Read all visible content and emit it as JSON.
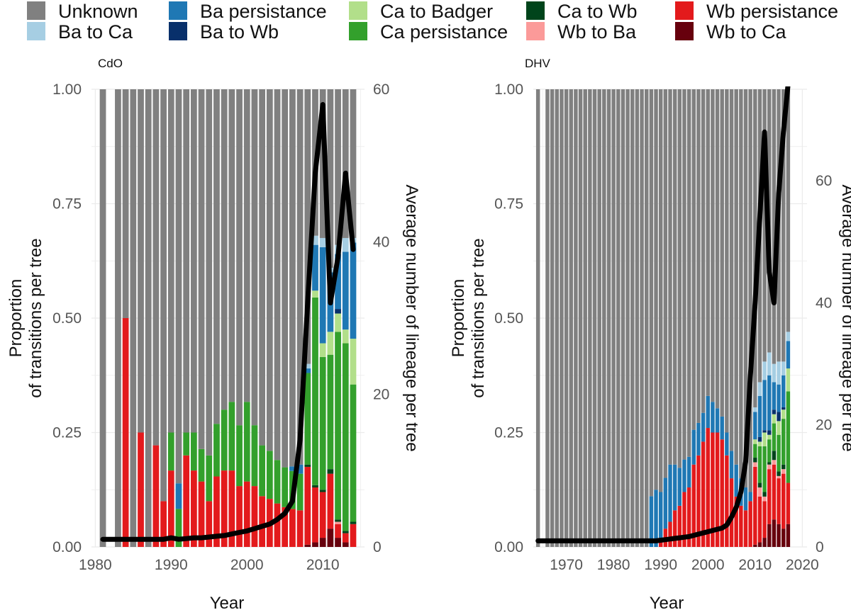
{
  "legend": {
    "entries": [
      {
        "key": "unknown",
        "label": "Unknown",
        "color": "#808080"
      },
      {
        "key": "ba_ca",
        "label": "Ba to Ca",
        "color": "#a6cee3"
      },
      {
        "key": "ba_pers",
        "label": "Ba persistance",
        "color": "#1f78b4"
      },
      {
        "key": "ba_wb",
        "label": "Ba to Wb",
        "color": "#08306b"
      },
      {
        "key": "ca_badger",
        "label": "Ca to Badger",
        "color": "#b2df8a"
      },
      {
        "key": "ca_pers",
        "label": "Ca persistance",
        "color": "#33a02c"
      },
      {
        "key": "ca_wb",
        "label": "Ca to Wb",
        "color": "#00441b"
      },
      {
        "key": "wb_ba",
        "label": "Wb to Ba",
        "color": "#fb9a99"
      },
      {
        "key": "wb_pers",
        "label": "Wb persistance",
        "color": "#e31a1c"
      },
      {
        "key": "wb_ca",
        "label": "Wb to Ca",
        "color": "#67000d"
      }
    ]
  },
  "chart_data": [
    {
      "type": "bar",
      "panel": "CdO",
      "title": "CdO",
      "xlabel": "Year",
      "ylabel_left": [
        "Proportion",
        "of transitions per tree"
      ],
      "ylabel_right": "Average number of lineage per tree",
      "xlim": [
        1979.5,
        2015.5
      ],
      "xticks": [
        1980,
        1990,
        2000,
        2010
      ],
      "ylim_left": [
        0,
        1
      ],
      "yticks_left": [
        0,
        0.25,
        0.5,
        0.75,
        1
      ],
      "ytick_labels_left": [
        "0.00",
        "0.25",
        "0.50",
        "0.75",
        "1.00"
      ],
      "ylim_right": [
        0,
        60
      ],
      "yticks_right": [
        0,
        20,
        40,
        60
      ],
      "stack_order": [
        "wb_ca",
        "wb_pers",
        "wb_ba",
        "ca_wb",
        "ca_pers",
        "ca_badger",
        "ba_wb",
        "ba_pers",
        "ba_ca"
      ],
      "years": [
        1981,
        1983,
        1984,
        1985,
        1986,
        1987,
        1988,
        1989,
        1990,
        1991,
        1992,
        1993,
        1994,
        1995,
        1996,
        1997,
        1998,
        1999,
        2000,
        2001,
        2002,
        2003,
        2004,
        2005,
        2006,
        2007,
        2008,
        2009,
        2010,
        2011,
        2012,
        2013,
        2014
      ],
      "bars": {
        "wb_ca": [
          0,
          0,
          0,
          0,
          0,
          0,
          0,
          0,
          0,
          0,
          0,
          0,
          0,
          0,
          0,
          0,
          0,
          0,
          0,
          0,
          0,
          0,
          0,
          0,
          0,
          0,
          0.005,
          0.01,
          0.02,
          0.04,
          0.02,
          0.01,
          0
        ],
        "wb_pers": [
          0,
          0,
          0.5,
          0,
          0.25,
          0,
          0.222,
          0.1,
          0.167,
          0,
          0.2,
          0.167,
          0.143,
          0.1,
          0.154,
          0.167,
          0.167,
          0.133,
          0.143,
          0.133,
          0.111,
          0.105,
          0.095,
          0.087,
          0.083,
          0.08,
          0.17,
          0.12,
          0.1,
          0.12,
          0.03,
          0.02,
          0.05
        ],
        "wb_ba": [
          0,
          0,
          0,
          0,
          0,
          0,
          0,
          0,
          0,
          0,
          0,
          0,
          0,
          0,
          0,
          0,
          0,
          0,
          0,
          0,
          0,
          0,
          0,
          0,
          0,
          0,
          0,
          0,
          0,
          0,
          0.005,
          0,
          0
        ],
        "ca_wb": [
          0,
          0,
          0,
          0,
          0,
          0,
          0,
          0,
          0,
          0,
          0,
          0,
          0,
          0,
          0,
          0,
          0,
          0,
          0,
          0,
          0,
          0,
          0,
          0,
          0,
          0,
          0.005,
          0.005,
          0.005,
          0.01,
          0.005,
          0.005,
          0.005
        ],
        "ca_pers": [
          0,
          0,
          0,
          0,
          0,
          0,
          0,
          0,
          0.083,
          0.083,
          0.05,
          0.083,
          0.071,
          0.1,
          0.115,
          0.133,
          0.15,
          0.133,
          0.174,
          0.133,
          0.111,
          0.105,
          0.095,
          0.087,
          0.083,
          0.08,
          0.2,
          0.41,
          0.29,
          0.25,
          0.41,
          0.41,
          0.3
        ],
        "ca_badger": [
          0,
          0,
          0,
          0,
          0,
          0,
          0,
          0,
          0,
          0,
          0,
          0,
          0,
          0,
          0,
          0,
          0,
          0,
          0,
          0,
          0,
          0,
          0,
          0,
          0,
          0,
          0,
          0.015,
          0.03,
          0.05,
          0.04,
          0.03,
          0.1
        ],
        "ba_wb": [
          0,
          0,
          0,
          0,
          0,
          0,
          0,
          0,
          0,
          0,
          0,
          0,
          0,
          0,
          0,
          0,
          0,
          0,
          0,
          0,
          0,
          0,
          0,
          0,
          0,
          0,
          0,
          0,
          0,
          0,
          0.01,
          0,
          0
        ],
        "ba_pers": [
          0,
          0,
          0,
          0,
          0,
          0,
          0,
          0,
          0,
          0.056,
          0,
          0,
          0,
          0,
          0,
          0,
          0,
          0,
          0,
          0,
          0,
          0,
          0,
          0,
          0.01,
          0.02,
          0.01,
          0.1,
          0.21,
          0.13,
          0.12,
          0.17,
          0.21
        ],
        "ba_ca": [
          0,
          0,
          0,
          0,
          0,
          0,
          0,
          0,
          0,
          0,
          0,
          0,
          0,
          0,
          0,
          0,
          0,
          0,
          0,
          0,
          0,
          0,
          0,
          0,
          0,
          0,
          0.01,
          0.02,
          0.02,
          0.01,
          0.02,
          0.03,
          0.01
        ]
      },
      "line": {
        "series": "Average number of lineage per tree",
        "x": [
          1981,
          1983,
          1984,
          1985,
          1986,
          1987,
          1988,
          1989,
          1990,
          1991,
          1992,
          1993,
          1994,
          1995,
          1996,
          1997,
          1998,
          1999,
          2000,
          2001,
          2002,
          2003,
          2004,
          2005,
          2006,
          2007,
          2008,
          2009,
          2010,
          2011,
          2012,
          2013,
          2014
        ],
        "y": [
          1,
          1,
          1,
          1,
          1,
          1,
          1,
          1,
          1.2,
          1,
          1.1,
          1.2,
          1.2,
          1.3,
          1.4,
          1.5,
          1.7,
          1.9,
          2.1,
          2.4,
          2.7,
          3,
          3.6,
          4.4,
          6,
          14,
          32,
          49,
          58,
          32,
          38,
          49,
          39
        ]
      }
    },
    {
      "type": "bar",
      "panel": "DHV",
      "title": "DHV",
      "xlabel": "Year",
      "ylabel_left": [
        "Proportion",
        "of transitions per tree"
      ],
      "ylabel_right": "Average number of lineage per tree",
      "xlim": [
        1963,
        2021
      ],
      "xticks": [
        1970,
        1980,
        1990,
        2000,
        2010,
        2020
      ],
      "ylim_left": [
        0,
        1
      ],
      "yticks_left": [
        0,
        0.25,
        0.5,
        0.75,
        1
      ],
      "ytick_labels_left": [
        "0.00",
        "0.25",
        "0.50",
        "0.75",
        "1.00"
      ],
      "ylim_right": [
        0,
        75
      ],
      "yticks_right": [
        0,
        20,
        40,
        60
      ],
      "stack_order": [
        "wb_ca",
        "wb_pers",
        "wb_ba",
        "ca_wb",
        "ca_pers",
        "ca_badger",
        "ba_wb",
        "ba_pers",
        "ba_ca"
      ],
      "years": [
        1964,
        1966,
        1967,
        1968,
        1969,
        1970,
        1971,
        1972,
        1973,
        1974,
        1975,
        1976,
        1977,
        1978,
        1979,
        1980,
        1981,
        1982,
        1983,
        1984,
        1985,
        1986,
        1987,
        1988,
        1989,
        1990,
        1991,
        1992,
        1993,
        1994,
        1995,
        1996,
        1997,
        1998,
        1999,
        2000,
        2001,
        2002,
        2003,
        2004,
        2005,
        2006,
        2007,
        2008,
        2009,
        2010,
        2011,
        2012,
        2013,
        2014,
        2015,
        2016,
        2017
      ],
      "bars": {
        "wb_ca": [
          0,
          0,
          0,
          0,
          0,
          0,
          0,
          0,
          0,
          0,
          0,
          0,
          0,
          0,
          0,
          0,
          0,
          0,
          0,
          0,
          0,
          0,
          0,
          0,
          0,
          0,
          0,
          0,
          0,
          0,
          0,
          0,
          0,
          0,
          0,
          0,
          0,
          0,
          0,
          0,
          0,
          0,
          0,
          0,
          0,
          0.005,
          0.01,
          0.02,
          0.05,
          0.06,
          0.05,
          0.04,
          0.05
        ],
        "wb_pers": [
          0,
          0,
          0,
          0,
          0,
          0,
          0,
          0,
          0,
          0,
          0,
          0,
          0,
          0,
          0,
          0,
          0,
          0,
          0,
          0,
          0,
          0,
          0,
          0,
          0,
          0.02,
          0.04,
          0.055,
          0.08,
          0.09,
          0.12,
          0.13,
          0.18,
          0.2,
          0.23,
          0.26,
          0.25,
          0.25,
          0.235,
          0.2,
          0.15,
          0.11,
          0.09,
          0.08,
          0.1,
          0.17,
          0.1,
          0.08,
          0.12,
          0.12,
          0.1,
          0.12,
          0.09
        ],
        "wb_ba": [
          0,
          0,
          0,
          0,
          0,
          0,
          0,
          0,
          0,
          0,
          0,
          0,
          0,
          0,
          0,
          0,
          0,
          0,
          0,
          0,
          0,
          0,
          0,
          0,
          0,
          0,
          0,
          0,
          0,
          0,
          0,
          0,
          0,
          0,
          0,
          0,
          0,
          0,
          0,
          0,
          0,
          0,
          0,
          0,
          0,
          0.01,
          0.02,
          0.01,
          0.01,
          0.01,
          0.005,
          0.01,
          0
        ],
        "ca_wb": [
          0,
          0,
          0,
          0,
          0,
          0,
          0,
          0,
          0,
          0,
          0,
          0,
          0,
          0,
          0,
          0,
          0,
          0,
          0,
          0,
          0,
          0,
          0,
          0,
          0,
          0,
          0,
          0,
          0,
          0,
          0,
          0,
          0,
          0,
          0,
          0,
          0,
          0,
          0,
          0,
          0,
          0,
          0,
          0,
          0,
          0.01,
          0.01,
          0.01,
          0.005,
          0.02,
          0.01,
          0.01,
          0
        ],
        "ca_pers": [
          0,
          0,
          0,
          0,
          0,
          0,
          0,
          0,
          0,
          0,
          0,
          0,
          0,
          0,
          0,
          0,
          0,
          0,
          0,
          0,
          0,
          0,
          0,
          0,
          0,
          0,
          0,
          0,
          0,
          0,
          0,
          0,
          0,
          0,
          0,
          0,
          0,
          0,
          0,
          0,
          0,
          0,
          0,
          0,
          0,
          0.03,
          0.08,
          0.1,
          0.05,
          0.06,
          0.08,
          0.1,
          0.2
        ],
        "ca_badger": [
          0,
          0,
          0,
          0,
          0,
          0,
          0,
          0,
          0,
          0,
          0,
          0,
          0,
          0,
          0,
          0,
          0,
          0,
          0,
          0,
          0,
          0,
          0,
          0,
          0,
          0,
          0,
          0,
          0,
          0,
          0,
          0,
          0,
          0,
          0,
          0,
          0,
          0,
          0,
          0,
          0,
          0,
          0,
          0,
          0,
          0.01,
          0.01,
          0.03,
          0.01,
          0.02,
          0.03,
          0.02,
          0.05
        ],
        "ba_wb": [
          0,
          0,
          0,
          0,
          0,
          0,
          0,
          0,
          0,
          0,
          0,
          0,
          0,
          0,
          0,
          0,
          0,
          0,
          0,
          0,
          0,
          0,
          0,
          0,
          0,
          0,
          0,
          0,
          0,
          0,
          0,
          0,
          0,
          0,
          0,
          0,
          0,
          0,
          0,
          0,
          0,
          0,
          0,
          0,
          0,
          0,
          0.01,
          0.005,
          0.01,
          0.01,
          0.02,
          0.005,
          0
        ],
        "ba_pers": [
          0,
          0,
          0,
          0,
          0,
          0,
          0,
          0,
          0,
          0,
          0,
          0,
          0,
          0,
          0,
          0,
          0,
          0,
          0,
          0,
          0,
          0,
          0,
          0.111,
          0.125,
          0.1,
          0.111,
          0.125,
          0.1,
          0.083,
          0.071,
          0.067,
          0.076,
          0.071,
          0.063,
          0.07,
          0.067,
          0.053,
          0.05,
          0.05,
          0.06,
          0.07,
          0.06,
          0.05,
          0.02,
          0.06,
          0.09,
          0.11,
          0.12,
          0.06,
          0.06,
          0.07,
          0.06
        ],
        "ba_ca": [
          0,
          0,
          0,
          0,
          0,
          0,
          0,
          0,
          0,
          0,
          0,
          0,
          0,
          0,
          0,
          0,
          0,
          0,
          0,
          0,
          0,
          0,
          0,
          0,
          0,
          0,
          0,
          0,
          0,
          0,
          0,
          0,
          0,
          0,
          0,
          0,
          0,
          0,
          0,
          0,
          0,
          0,
          0,
          0,
          0,
          0.01,
          0.03,
          0.04,
          0.05,
          0.04,
          0.05,
          0.03,
          0.02
        ]
      },
      "line": {
        "series": "Average number of lineage per tree",
        "x": [
          1964,
          1966,
          1967,
          1968,
          1969,
          1970,
          1971,
          1972,
          1973,
          1974,
          1975,
          1976,
          1977,
          1978,
          1979,
          1980,
          1981,
          1982,
          1983,
          1984,
          1985,
          1986,
          1987,
          1988,
          1989,
          1990,
          1991,
          1992,
          1993,
          1994,
          1995,
          1996,
          1997,
          1998,
          1999,
          2000,
          2001,
          2002,
          2003,
          2004,
          2005,
          2006,
          2007,
          2008,
          2009,
          2010,
          2011,
          2012,
          2013,
          2014,
          2015,
          2016,
          2017
        ],
        "y": [
          1,
          1,
          1,
          1,
          1,
          1,
          1,
          1,
          1,
          1,
          1,
          1,
          1,
          1,
          1,
          1,
          1,
          1,
          1,
          1,
          1,
          1,
          1,
          1,
          1,
          1.1,
          1.2,
          1.3,
          1.4,
          1.5,
          1.6,
          1.7,
          1.9,
          2.1,
          2.3,
          2.5,
          2.7,
          2.9,
          3.1,
          3.6,
          4.9,
          6.5,
          9,
          14,
          28,
          40,
          54,
          68,
          45,
          40,
          58,
          68,
          76
        ]
      }
    }
  ]
}
